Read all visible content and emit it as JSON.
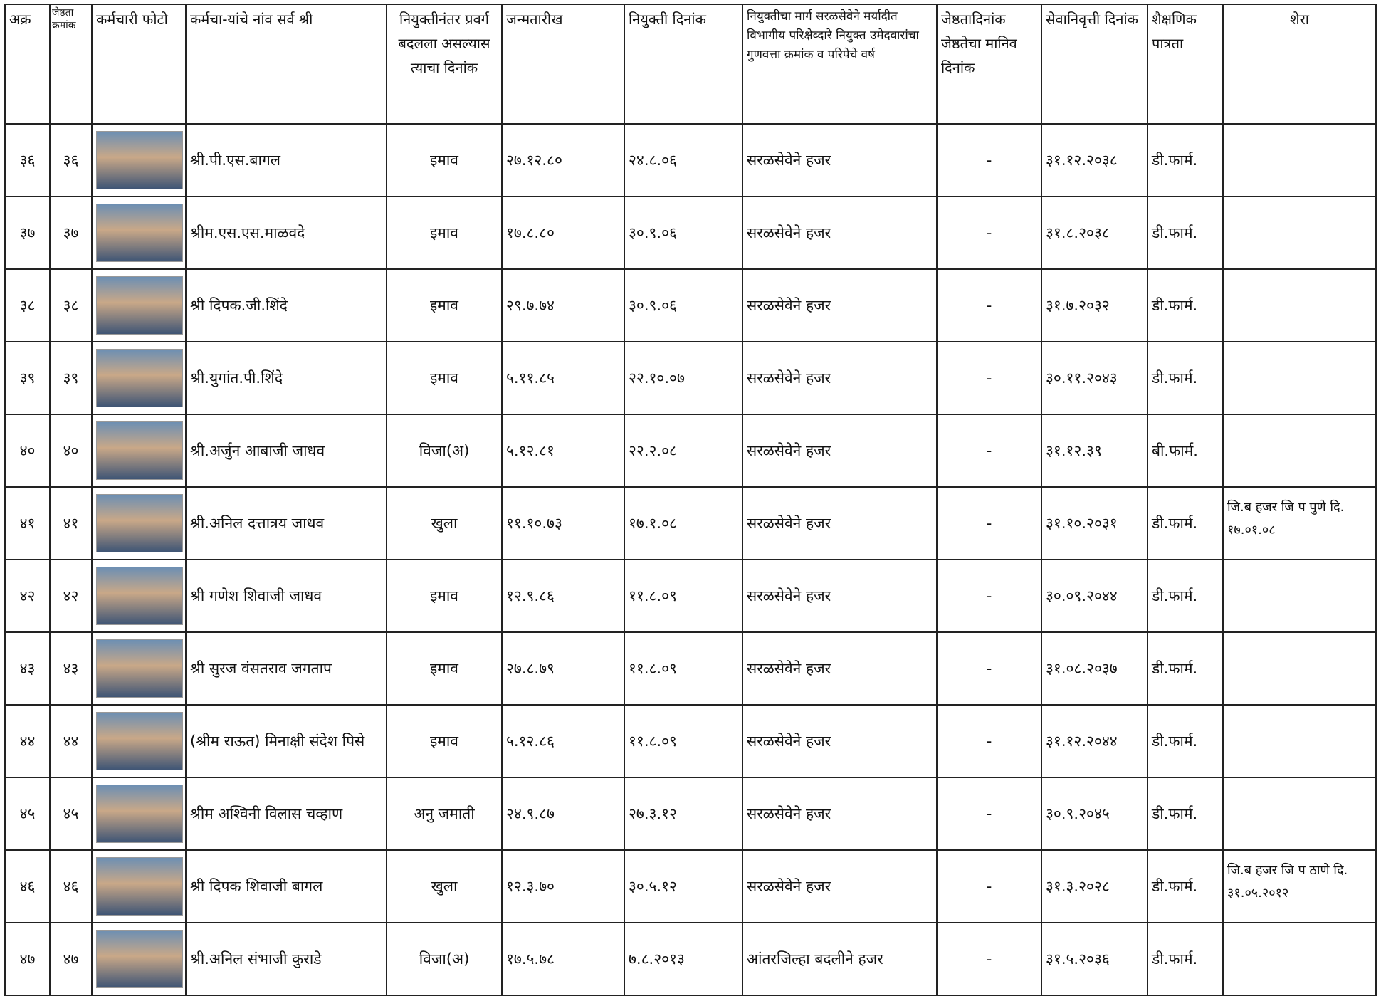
{
  "table": {
    "header": [
      "अक्र",
      "जेष्ठता क्रमांक",
      "कर्मचारी फोटो",
      "कर्मचा-यांचे नांव  सर्व श्री",
      "नियुक्तीनंतर प्रवर्ग बदलला असल्यास त्याचा दिनांक",
      "जन्मतारीख",
      "नियुक्ती दिनांक",
      "नियुक्तीचा मार्ग सरळसेवेने मर्यादीत  विभागीय परिक्षेव्दारे नियुक्त उमेदवारांचा गुणवत्ता क्रमांक व परिपेचे वर्ष",
      "जेष्ठतादिनांक जेष्ठतेचा मानिव दिनांक",
      "सेवानिवृत्ती दिनांक",
      "शैक्षणिक पात्रता",
      "शेरा"
    ],
    "rows": [
      {
        "sr": "३६",
        "seniority": "३६",
        "name": "श्री.पी.एस.बागल",
        "category": "इमाव",
        "dob": "२७.१२.८०",
        "appointment": "२४.८.०६",
        "route": "सरळसेवेने हजर",
        "seniority_date": "-",
        "retirement": "३१.१२.२०३८",
        "qualification": "डी.फार्म."
      },
      {
        "sr": "३७",
        "seniority": "३७",
        "name": "श्रीम.एस.एस.माळवदे",
        "category": "इमाव",
        "dob": "१७.८.८०",
        "appointment": "३०.९.०६",
        "route": "सरळसेवेने हजर",
        "seniority_date": "-",
        "retirement": "३१.८.२०३८",
        "qualification": "डी.फार्म."
      },
      {
        "sr": "३८",
        "seniority": "३८",
        "name": "श्री दिपक.जी.शिंदे",
        "category": "इमाव",
        "dob": "२९.७.७४",
        "appointment": "३०.९.०६",
        "route": "सरळसेवेने हजर",
        "seniority_date": "-",
        "retirement": "३१.७.२०३२",
        "qualification": "डी.फार्म."
      },
      {
        "sr": "३९",
        "seniority": "३९",
        "name": "श्री.युगांत.पी.शिंदे",
        "category": "इमाव",
        "dob": "५.११.८५",
        "appointment": "२२.१०.०७",
        "route": "सरळसेवेने हजर",
        "seniority_date": "-",
        "retirement": "३०.११.२०४३",
        "qualification": "डी.फार्म."
      },
      {
        "sr": "४०",
        "seniority": "४०",
        "name": "श्री.अर्जुन आबाजी जाधव",
        "category": "विजा(अ)",
        "dob": "५.१२.८१",
        "appointment": "२२.२.०८",
        "route": "सरळसेवेने हजर",
        "seniority_date": "-",
        "retirement": "३१.१२.३९",
        "qualification": "बी.फार्म."
      },
      {
        "sr": "४१",
        "seniority": "४१",
        "name": "श्री.अनिल दत्तात्रय जाधव",
        "category": "खुला",
        "dob": "११.१०.७३",
        "appointment": "१७.१.०८",
        "route": "सरळसेवेने हजर",
        "seniority_date": "-",
        "retirement": "३१.१०.२०३१",
        "qualification": "डी.फार्म.",
        "remark": "जि.ब हजर जि प पुणे दि. १७.०१.०८"
      },
      {
        "sr": "४२",
        "seniority": "४२",
        "name": "श्री गणेश शिवाजी जाधव",
        "category": "इमाव",
        "dob": "१२.९.८६",
        "appointment": "११.८.०९",
        "route": "सरळसेवेने हजर",
        "seniority_date": "-",
        "retirement": "३०.०९.२०४४",
        "qualification": "डी.फार्म."
      },
      {
        "sr": "४३",
        "seniority": "४३",
        "name": "श्री सुरज वंसतराव जगताप",
        "category": "इमाव",
        "dob": "२७.८.७९",
        "appointment": "११.८.०९",
        "route": "सरळसेवेने हजर",
        "seniority_date": "-",
        "retirement": "३१.०८.२०३७",
        "qualification": "डी.फार्म."
      },
      {
        "sr": "४४",
        "seniority": "४४",
        "name": "(श्रीम राऊत) मिनाक्षी संदेश पिसे",
        "category": "इमाव",
        "dob": "५.१२.८६",
        "appointment": "११.८.०९",
        "route": "सरळसेवेने हजर",
        "seniority_date": "-",
        "retirement": "३१.१२.२०४४",
        "qualification": "डी.फार्म."
      },
      {
        "sr": "४५",
        "seniority": "४५",
        "name": "श्रीम अश्विनी विलास चव्हाण",
        "category": "अनु जमाती",
        "dob": "२४.९.८७",
        "appointment": "२७.३.१२",
        "route": "सरळसेवेने हजर",
        "seniority_date": "-",
        "retirement": "३०.९.२०४५",
        "qualification": "डी.फार्म."
      },
      {
        "sr": "४६",
        "seniority": "४६",
        "name": "श्री दिपक शिवाजी बागल",
        "category": "खुला",
        "dob": "१२.३.७०",
        "appointment": "३०.५.१२",
        "route": "सरळसेवेने हजर",
        "seniority_date": "-",
        "retirement": "३१.३.२०२८",
        "qualification": "डी.फार्म.",
        "remark": "जि.ब हजर जि प ठाणे दि. ३१.०५.२०१२"
      },
      {
        "sr": "४७",
        "seniority": "४७",
        "name": "श्री.अनिल संभाजी कुराडे",
        "category": "विजा(अ)",
        "dob": "१७.५.७८",
        "appointment": "७.८.२०१३",
        "route": "आंतरजिल्हा बदलीने हजर",
        "seniority_date": "-",
        "retirement": "३१.५.२०३६",
        "qualification": "डी.फार्म."
      }
    ]
  }
}
